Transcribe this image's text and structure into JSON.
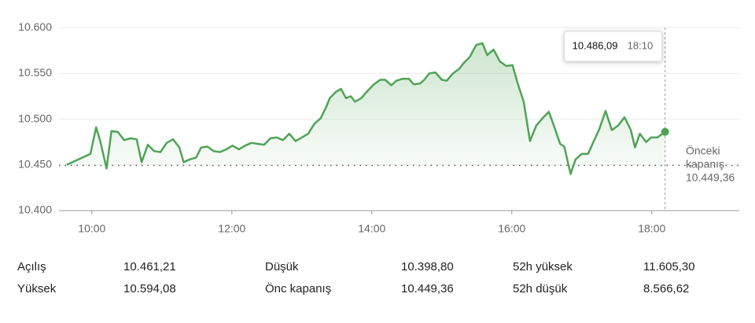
{
  "chart_data": {
    "type": "line",
    "x": [
      9.64,
      9.98,
      10.06,
      10.12,
      10.21,
      10.28,
      10.37,
      10.46,
      10.55,
      10.64,
      10.71,
      10.8,
      10.89,
      10.98,
      11.07,
      11.16,
      11.25,
      11.31,
      11.4,
      11.49,
      11.56,
      11.65,
      11.74,
      11.83,
      11.92,
      12.01,
      12.1,
      12.19,
      12.28,
      12.37,
      12.46,
      12.55,
      12.64,
      12.73,
      12.82,
      12.91,
      13.0,
      13.09,
      13.18,
      13.27,
      13.34,
      13.4,
      13.49,
      13.56,
      13.63,
      13.7,
      13.76,
      13.85,
      13.94,
      14.03,
      14.12,
      14.19,
      14.28,
      14.35,
      14.44,
      14.53,
      14.6,
      14.69,
      14.75,
      14.82,
      14.91,
      15.0,
      15.07,
      15.16,
      15.25,
      15.31,
      15.4,
      15.49,
      15.58,
      15.65,
      15.74,
      15.83,
      15.92,
      16.01,
      16.08,
      16.17,
      16.26,
      16.35,
      16.44,
      16.53,
      16.6,
      16.69,
      16.75,
      16.84,
      16.91,
      17.0,
      17.09,
      17.16,
      17.25,
      17.34,
      17.43,
      17.52,
      17.61,
      17.7,
      17.76,
      17.83,
      17.92,
      17.99,
      18.08,
      18.19
    ],
    "series": [
      {
        "color": "#4fa455",
        "values": [
          10450,
          10462,
          10491,
          10476,
          10446,
          10487,
          10486,
          10477,
          10479,
          10478,
          10453,
          10472,
          10465,
          10464,
          10474,
          10478,
          10469,
          10453,
          10456,
          10458,
          10469,
          10470,
          10465,
          10464,
          10467,
          10471,
          10467,
          10471,
          10474,
          10473,
          10472,
          10479,
          10480,
          10477,
          10484,
          10476,
          10480,
          10484,
          10495,
          10501,
          10512,
          10523,
          10530,
          10533,
          10523,
          10525,
          10519,
          10523,
          10531,
          10538,
          10543,
          10543,
          10537,
          10542,
          10544,
          10544,
          10538,
          10539,
          10543,
          10550,
          10551,
          10543,
          10542,
          10550,
          10555,
          10561,
          10568,
          10581,
          10583,
          10570,
          10576,
          10563,
          10558,
          10559,
          10540,
          10519,
          10476,
          10493,
          10501,
          10508,
          10493,
          10473,
          10470,
          10440,
          10456,
          10462,
          10462,
          10474,
          10489,
          10509,
          10488,
          10493,
          10502,
          10488,
          10469,
          10484,
          10475,
          10480,
          10480,
          10486.09
        ]
      }
    ],
    "xlim": [
      9.53,
      19.25
    ],
    "ylim": [
      10400,
      10613
    ],
    "xticks": [
      {
        "value": 10,
        "label": "10:00"
      },
      {
        "value": 12,
        "label": "12:00"
      },
      {
        "value": 14,
        "label": "14:00"
      },
      {
        "value": 16,
        "label": "16:00"
      },
      {
        "value": 18,
        "label": "18:00"
      }
    ],
    "yticks": [
      {
        "value": 10400,
        "label": "10.400"
      },
      {
        "value": 10450,
        "label": "10.450"
      },
      {
        "value": 10500,
        "label": "10.500"
      },
      {
        "value": 10550,
        "label": "10.550"
      },
      {
        "value": 10600,
        "label": "10.600"
      }
    ],
    "grid": true,
    "tooltip": {
      "value": "10.486,09",
      "time": "18:10"
    },
    "previous_close": {
      "value": 10449.36,
      "label": "10.449,36",
      "title": [
        "Önceki",
        "kapanış"
      ]
    }
  },
  "stats": [
    [
      [
        "Açılış",
        "10.461,21"
      ],
      [
        "Düşük",
        "10.398,80"
      ],
      [
        "52h yüksek",
        "11.605,30"
      ]
    ],
    [
      [
        "Yüksek",
        "10.594,08"
      ],
      [
        "Önc kapanış",
        "10.449,36"
      ],
      [
        "52h düşük",
        "8.566,62"
      ]
    ]
  ]
}
